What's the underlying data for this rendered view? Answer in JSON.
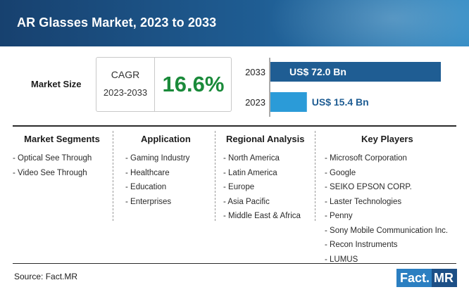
{
  "header": {
    "title": "AR Glasses Market, 2023 to 2033"
  },
  "market_size": {
    "label": "Market Size",
    "cagr_label": "CAGR",
    "cagr_period": "2023-2033",
    "cagr_value": "16.6%"
  },
  "colors": {
    "bar_2033": "#1f5d93",
    "bar_2023": "#2b9bd8",
    "cagr": "#1a8a3a"
  },
  "chart_data": {
    "type": "bar",
    "orientation": "horizontal",
    "categories": [
      "2033",
      "2023"
    ],
    "values": [
      72.0,
      15.4
    ],
    "value_labels": [
      "US$ 72.0 Bn",
      "US$ 15.4 Bn"
    ],
    "title": "",
    "xlabel": "",
    "ylabel": "",
    "xlim": [
      0,
      72.0
    ],
    "grid": false
  },
  "columns": [
    {
      "heading": "Market Segments",
      "items": [
        "- Optical See Through",
        "- Video See Through"
      ]
    },
    {
      "heading": "Application",
      "items": [
        "- Gaming Industry",
        "- Healthcare",
        "- Education",
        "- Enterprises"
      ]
    },
    {
      "heading": "Regional Analysis",
      "items": [
        "- North America",
        "- Latin America",
        "- Europe",
        "- Asia Pacific",
        "- Middle East & Africa"
      ]
    },
    {
      "heading": "Key Players",
      "items": [
        "- Microsoft Corporation",
        "- Google",
        "- SEIKO EPSON CORP.",
        "- Laster Technologies",
        "- Penny",
        "- Sony Mobile Communication Inc.",
        "- Recon Instruments",
        "- LUMUS"
      ]
    }
  ],
  "footer": {
    "source": "Source: Fact.MR",
    "logo_part1": "Fact.",
    "logo_part2": "MR"
  }
}
